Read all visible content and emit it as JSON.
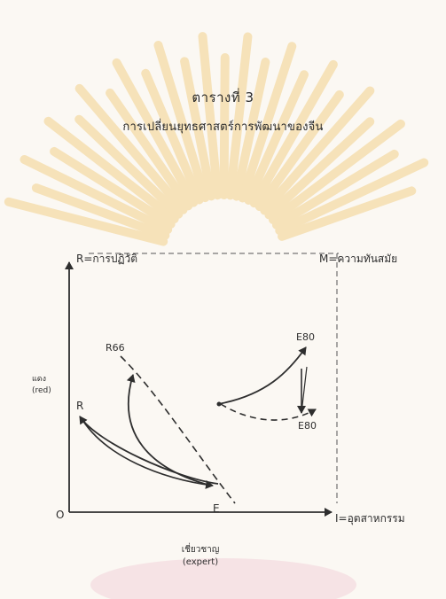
{
  "header": {
    "title": "ตารางที่ 3",
    "subtitle": "การเปลี่ยนยุทธศาสตร์การพัฒนาของจีน"
  },
  "diagram": {
    "y_axis_label": "R=การปฏิวัติ",
    "top_right_label": "M=ความทันสมัย",
    "origin_label": "O",
    "x_axis_label": "I=อุตสาหกรรม",
    "x_axis_sublabel_line1": "เชี่ยวชาญ",
    "x_axis_sublabel_line2": "(expert)",
    "left_side_label_line1": "แดง",
    "left_side_label_line2": "(red)",
    "point_labels": {
      "R": "R",
      "R66": "R66",
      "E": "E",
      "E80_top": "E80",
      "E80_bottom": "E80"
    }
  },
  "colors": {
    "ink": "#2e2e2e",
    "watermark": "#f6e2b9",
    "watermark_base": "#f4d6dc"
  }
}
